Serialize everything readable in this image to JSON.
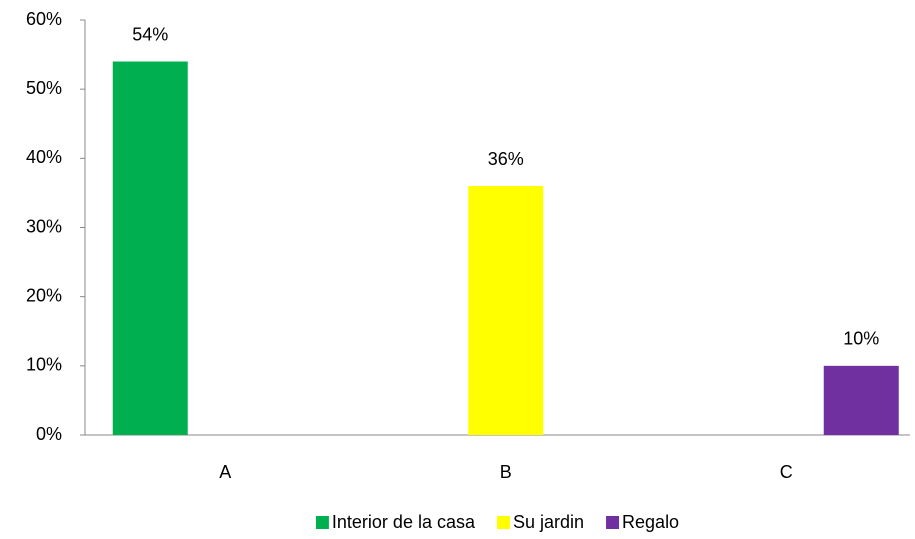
{
  "chart_data": {
    "type": "bar",
    "categories": [
      "A",
      "B",
      "C"
    ],
    "series": [
      {
        "name": "Interior de la casa",
        "color": "#00b050",
        "values": [
          54,
          null,
          null
        ],
        "value_labels": [
          "54%",
          null,
          null
        ]
      },
      {
        "name": "Su jardin",
        "color": "#ffff00",
        "values": [
          null,
          36,
          null
        ],
        "value_labels": [
          null,
          "36%",
          null
        ]
      },
      {
        "name": "Regalo",
        "color": "#7030a0",
        "values": [
          null,
          null,
          10
        ],
        "value_labels": [
          null,
          null,
          "10%"
        ]
      }
    ],
    "ylim": [
      0,
      60
    ],
    "yticks": [
      {
        "value": 0,
        "label": "0%"
      },
      {
        "value": 10,
        "label": "10%"
      },
      {
        "value": 20,
        "label": "20%"
      },
      {
        "value": 30,
        "label": "30%"
      },
      {
        "value": 40,
        "label": "40%"
      },
      {
        "value": 50,
        "label": "50%"
      },
      {
        "value": 60,
        "label": "60%"
      }
    ],
    "grid": false,
    "legend": "bottom"
  }
}
